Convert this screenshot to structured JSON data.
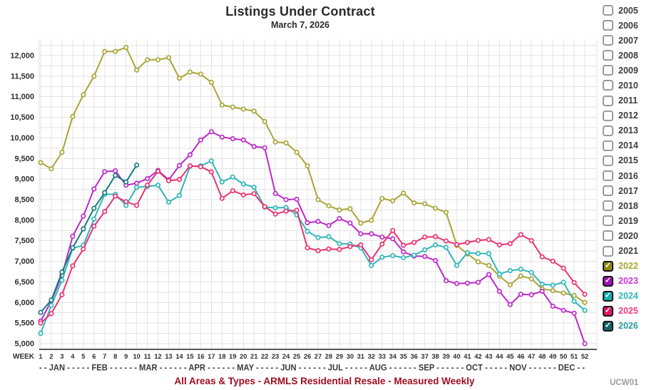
{
  "title": "Listings Under Contract",
  "subtitle": "March 7, 2026",
  "footer": "All Areas & Types - ARMLS Residential Resale - Measured Weekly",
  "watermark": "UCW01",
  "axis": {
    "week_label": "WEEK",
    "months_line": "- - JAN - - - - - FEB - - - - - - MAR - - - - - - APR - - - - - - MAY - - - - - JUN - - - - - - JUL - - - - - AUG - - - - - - SEP - - - - - - OCT - - - - - NOV - - - - - - DEC - -"
  },
  "legend": {
    "items": [
      {
        "year": "2005",
        "checked": false
      },
      {
        "year": "2006",
        "checked": false
      },
      {
        "year": "2007",
        "checked": false
      },
      {
        "year": "2008",
        "checked": false
      },
      {
        "year": "2009",
        "checked": false
      },
      {
        "year": "2010",
        "checked": false
      },
      {
        "year": "2011",
        "checked": false
      },
      {
        "year": "2012",
        "checked": false
      },
      {
        "year": "2013",
        "checked": false
      },
      {
        "year": "2014",
        "checked": false
      },
      {
        "year": "2015",
        "checked": false
      },
      {
        "year": "2016",
        "checked": false
      },
      {
        "year": "2017",
        "checked": false
      },
      {
        "year": "2018",
        "checked": false
      },
      {
        "year": "2019",
        "checked": false
      },
      {
        "year": "2020",
        "checked": false
      },
      {
        "year": "2021",
        "checked": false
      },
      {
        "year": "2022",
        "checked": true,
        "color": "#aaa635",
        "box": "#8f8c15"
      },
      {
        "year": "2023",
        "checked": true,
        "color": "#c935d6",
        "box": "#a410b8"
      },
      {
        "year": "2024",
        "checked": true,
        "color": "#31b7ba",
        "box": "#17adb0"
      },
      {
        "year": "2025",
        "checked": true,
        "color": "#f23b84",
        "box": "#e3136a"
      },
      {
        "year": "2026",
        "checked": true,
        "color": "#2a9aa0",
        "box": "#10666c"
      }
    ]
  },
  "chart_data": {
    "type": "line",
    "xlabel": "WEEK",
    "ylabel": "",
    "x_weeks": [
      1,
      2,
      3,
      4,
      5,
      6,
      7,
      8,
      9,
      10,
      11,
      12,
      13,
      14,
      15,
      16,
      17,
      18,
      19,
      20,
      21,
      22,
      23,
      24,
      25,
      26,
      27,
      28,
      29,
      30,
      31,
      32,
      33,
      34,
      35,
      36,
      37,
      38,
      39,
      40,
      41,
      42,
      43,
      44,
      45,
      46,
      47,
      48,
      49,
      50,
      51,
      52
    ],
    "ylim": [
      5000,
      12400
    ],
    "ytick_min": 5000,
    "ytick_max": 12000,
    "ytick_step": 500,
    "minor_grid_step": 250,
    "grid": true,
    "legend_position": "right",
    "marker": "open-circle",
    "series": [
      {
        "name": "2022",
        "color": "#a9a437",
        "values": [
          9400,
          9250,
          9650,
          10520,
          11050,
          11500,
          12100,
          12100,
          12200,
          11650,
          11900,
          11900,
          11950,
          11450,
          11600,
          11550,
          11350,
          10800,
          10750,
          10700,
          10650,
          10400,
          9900,
          9880,
          9650,
          9320,
          8500,
          8350,
          8250,
          8280,
          7930,
          8000,
          8530,
          8470,
          8660,
          8420,
          8400,
          8290,
          8190,
          7390,
          7180,
          6990,
          6900,
          6640,
          6430,
          6645,
          6580,
          6330,
          6290,
          6230,
          6170,
          6000
        ]
      },
      {
        "name": "2023",
        "color": "#bb29c7",
        "values": [
          5550,
          6040,
          6660,
          7610,
          8100,
          8760,
          9180,
          9200,
          8850,
          8900,
          9010,
          9210,
          8980,
          9330,
          9590,
          9950,
          10150,
          10020,
          9980,
          9950,
          9790,
          9760,
          8650,
          8500,
          8510,
          7940,
          7970,
          7870,
          8040,
          7930,
          7670,
          7670,
          7590,
          7550,
          7230,
          7130,
          7120,
          7020,
          6530,
          6460,
          6470,
          6490,
          6680,
          6270,
          5950,
          6200,
          6190,
          6275,
          5910,
          5810,
          5740,
          5000
        ]
      },
      {
        "name": "2024",
        "color": "#2fb6b9",
        "values": [
          5250,
          5930,
          6540,
          7320,
          7390,
          8030,
          8630,
          8630,
          8360,
          8800,
          8820,
          8850,
          8440,
          8600,
          9310,
          9320,
          9440,
          8930,
          9050,
          8880,
          8800,
          8320,
          8300,
          8310,
          8130,
          7730,
          7580,
          7600,
          7430,
          7420,
          7330,
          6900,
          7100,
          7140,
          7090,
          7150,
          7280,
          7400,
          7340,
          6900,
          7210,
          7190,
          7190,
          6690,
          6775,
          6810,
          6730,
          6445,
          6420,
          6490,
          6030,
          5810
        ]
      },
      {
        "name": "2025",
        "color": "#e93272",
        "values": [
          5500,
          5730,
          6190,
          6890,
          7300,
          7855,
          8210,
          8585,
          8450,
          8360,
          8855,
          9190,
          8960,
          8990,
          9320,
          9300,
          9175,
          8530,
          8715,
          8615,
          8645,
          8330,
          8150,
          8220,
          8240,
          7330,
          7260,
          7300,
          7290,
          7360,
          7400,
          7040,
          7420,
          7750,
          7390,
          7460,
          7590,
          7600,
          7495,
          7410,
          7460,
          7510,
          7530,
          7400,
          7430,
          7650,
          7505,
          7110,
          7005,
          6835,
          6485,
          6200
        ]
      },
      {
        "name": "2026",
        "color": "#187a80",
        "values": [
          5760,
          6060,
          6740,
          7330,
          7790,
          8290,
          8670,
          9090,
          8930,
          9340
        ]
      }
    ]
  }
}
